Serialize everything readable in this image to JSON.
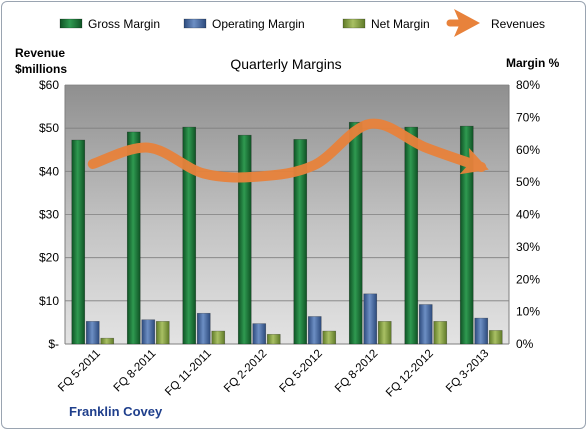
{
  "chart_data": {
    "type": "bar",
    "title": "Quarterly Margins",
    "footer": "Franklin Covey",
    "left_axis": {
      "title_lines": [
        "Revenue",
        "$millions"
      ],
      "ticks": [
        "$-",
        "$10",
        "$20",
        "$30",
        "$40",
        "$50",
        "$60"
      ],
      "range": [
        0,
        60
      ]
    },
    "right_axis": {
      "title": "Margin %",
      "ticks": [
        "0%",
        "10%",
        "20%",
        "30%",
        "40%",
        "50%",
        "60%",
        "70%",
        "80%"
      ],
      "range": [
        0,
        80
      ]
    },
    "categories": [
      "FQ 5-2011",
      "FQ 8-2011",
      "FQ 11-2011",
      "FQ 2-2012",
      "FQ 5-2012",
      "FQ 8-2012",
      "FQ 12-2012",
      "FQ 3-2013"
    ],
    "series": [
      {
        "name": "Gross Margin",
        "kind": "bar",
        "axis": "right",
        "color": "#1e7a3c",
        "values": [
          63,
          65.5,
          67,
          64.5,
          63.2,
          68.5,
          67,
          67.3
        ]
      },
      {
        "name": "Operating Margin",
        "kind": "bar",
        "axis": "right",
        "color": "#4a6fa8",
        "values": [
          7,
          7.5,
          9.5,
          6.3,
          8.5,
          15.5,
          12.2,
          8
        ]
      },
      {
        "name": "Net Margin",
        "kind": "bar",
        "axis": "right",
        "color": "#8aa24a",
        "values": [
          1.8,
          7,
          4,
          3,
          4,
          7,
          7,
          4.2
        ]
      },
      {
        "name": "Revenues",
        "kind": "line",
        "axis": "left",
        "color": "#e8823b",
        "values": [
          41.7,
          45.5,
          39.5,
          38.8,
          41.5,
          51,
          45.5,
          41
        ]
      }
    ],
    "grid": true,
    "legend": "top"
  }
}
